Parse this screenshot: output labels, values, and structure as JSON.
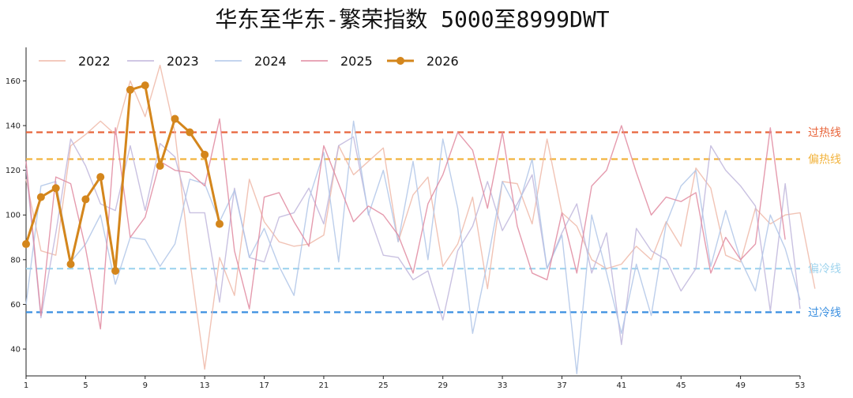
{
  "chart_data": {
    "type": "line",
    "title": "华东至华东-繁荣指数 5000至8999DWT",
    "xlabel": "",
    "ylabel": "",
    "xlim": [
      1,
      53
    ],
    "ylim": [
      28,
      175
    ],
    "x_ticks": [
      1,
      5,
      9,
      13,
      17,
      21,
      25,
      29,
      33,
      37,
      41,
      45,
      49,
      53
    ],
    "y_ticks": [
      40,
      60,
      80,
      100,
      120,
      140,
      160
    ],
    "legend_position": "top-left",
    "grid": false,
    "reference_lines": [
      {
        "label": "过热线",
        "value": 137,
        "color": "#e8643a"
      },
      {
        "label": "偏热线",
        "value": 125,
        "color": "#f2b33d"
      },
      {
        "label": "偏冷线",
        "value": 76,
        "color": "#9fd4ee"
      },
      {
        "label": "过冷线",
        "value": 56.5,
        "color": "#3a8fe0"
      }
    ],
    "series": [
      {
        "name": "2022",
        "color": "#efb9a8",
        "highlight": false,
        "values": [
          116,
          84,
          82,
          131,
          136,
          142,
          136,
          160,
          144,
          167,
          137,
          80,
          31,
          81,
          64,
          116,
          97,
          88,
          86,
          87,
          91,
          131,
          118,
          124,
          130,
          88,
          109,
          117,
          77,
          87,
          108,
          67,
          115,
          114,
          96,
          134,
          101,
          95,
          80,
          76,
          78,
          86,
          80,
          97,
          86,
          121,
          112,
          82,
          79,
          103,
          96,
          100,
          101,
          67
        ]
      },
      {
        "name": "2023",
        "color": "#c0b6dc",
        "highlight": false,
        "values": [
          121,
          54,
          92,
          134,
          122,
          105,
          102,
          131,
          102,
          132,
          126,
          101,
          101,
          61,
          112,
          81,
          79,
          99,
          101,
          112,
          96,
          131,
          135,
          101,
          82,
          81,
          71,
          75,
          53,
          84,
          95,
          115,
          93,
          105,
          118,
          76,
          92,
          105,
          74,
          92,
          42,
          94,
          84,
          80,
          66,
          76,
          131,
          120,
          113,
          104,
          57,
          114,
          58
        ]
      },
      {
        "name": "2024",
        "color": "#b0c6e8",
        "highlight": false,
        "values": [
          60,
          113,
          115,
          79,
          87,
          100,
          69,
          90,
          89,
          77,
          87,
          116,
          114,
          97,
          111,
          81,
          94,
          77,
          64,
          107,
          128,
          79,
          142,
          100,
          120,
          88,
          124,
          80,
          134,
          103,
          47,
          79,
          115,
          102,
          125,
          76,
          91,
          29,
          100,
          74,
          47,
          78,
          55,
          96,
          113,
          120,
          77,
          102,
          80,
          66,
          100,
          85,
          62
        ]
      },
      {
        "name": "2025",
        "color": "#e08aa0",
        "highlight": false,
        "values": [
          124,
          55,
          117,
          114,
          85,
          49,
          139,
          90,
          99,
          124,
          120,
          119,
          113,
          143,
          84,
          58,
          108,
          110,
          97,
          86,
          131,
          114,
          97,
          104,
          100,
          91,
          74,
          105,
          118,
          137,
          129,
          103,
          137,
          95,
          74,
          71,
          101,
          74,
          113,
          120,
          140,
          119,
          100,
          108,
          106,
          110,
          74,
          90,
          80,
          87,
          139,
          89
        ]
      },
      {
        "name": "2026",
        "color": "#d4861c",
        "highlight": true,
        "values": [
          87,
          108,
          112,
          78,
          107,
          117,
          75,
          156,
          158,
          122,
          143,
          137,
          127,
          96
        ]
      }
    ]
  }
}
